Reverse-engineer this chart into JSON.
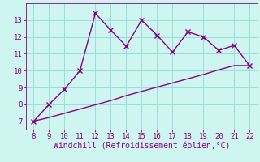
{
  "xlabel": "Windchill (Refroidissement éolien,°C)",
  "background_color": "#cff5f0",
  "line_color": "#880088",
  "grid_color": "#99dddd",
  "spine_color": "#330033",
  "x_data": [
    8,
    9,
    10,
    11,
    12,
    13,
    14,
    15,
    16,
    17,
    18,
    19,
    20,
    21,
    22
  ],
  "y_zigzag": [
    7.0,
    8.0,
    8.9,
    10.0,
    13.4,
    12.4,
    11.45,
    13.0,
    12.1,
    11.1,
    12.3,
    12.0,
    11.2,
    11.5,
    10.3
  ],
  "y_trend": [
    7.0,
    7.22,
    7.47,
    7.72,
    7.97,
    8.22,
    8.52,
    8.77,
    9.02,
    9.27,
    9.52,
    9.77,
    10.05,
    10.3,
    10.3
  ],
  "xlim": [
    7.5,
    22.5
  ],
  "ylim": [
    6.5,
    14.0
  ],
  "xticks": [
    8,
    9,
    10,
    11,
    12,
    13,
    14,
    15,
    16,
    17,
    18,
    19,
    20,
    21,
    22
  ],
  "yticks": [
    7,
    8,
    9,
    10,
    11,
    12,
    13
  ],
  "tick_fontsize": 6.5,
  "xlabel_fontsize": 7.0,
  "marker": "x",
  "markersize": 4,
  "linewidth": 1.0
}
